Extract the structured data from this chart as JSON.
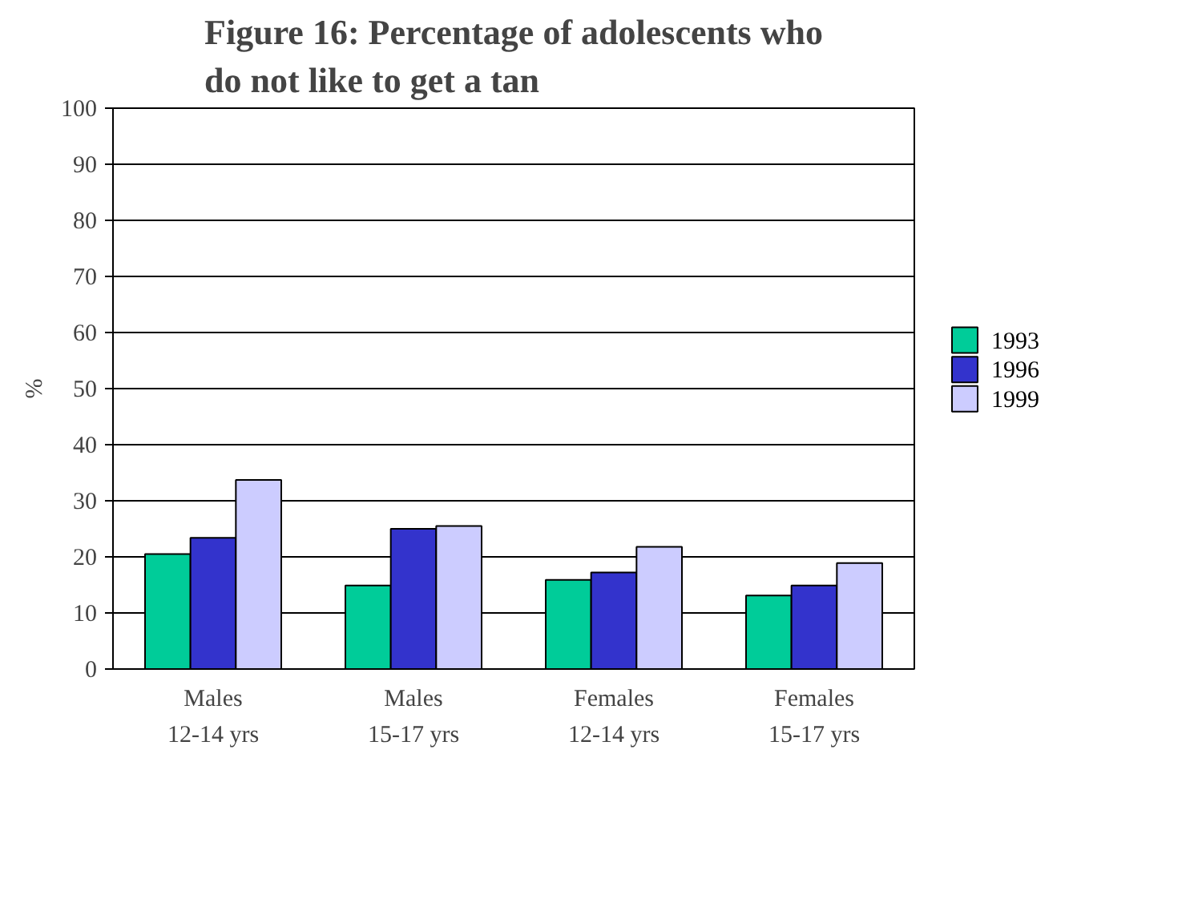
{
  "chart_data": {
    "type": "bar",
    "title": "Figure 16: Percentage of adolescents who do not like to get a tan",
    "ylabel": "%",
    "categories": [
      "Males\n12-14 yrs",
      "Males\n15-17 yrs",
      "Females\n12-14 yrs",
      "Females\n15-17 yrs"
    ],
    "series": [
      {
        "name": "1993",
        "color": "#00cc99",
        "values": [
          20.5,
          14.9,
          15.9,
          13.1
        ]
      },
      {
        "name": "1996",
        "color": "#3333cc",
        "values": [
          23.4,
          25.0,
          17.2,
          14.9
        ]
      },
      {
        "name": "1999",
        "color": "#ccccff",
        "values": [
          33.7,
          25.5,
          21.8,
          18.9
        ]
      }
    ],
    "ylim": [
      0,
      100
    ],
    "yticks": [
      0,
      10,
      20,
      30,
      40,
      50,
      60,
      70,
      80,
      90,
      100
    ],
    "grid": "y",
    "legend": "right"
  }
}
